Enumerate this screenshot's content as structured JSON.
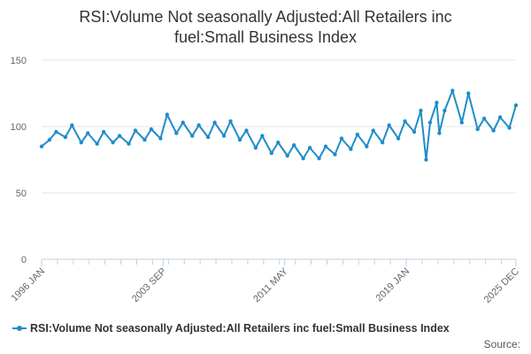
{
  "title_line1": "RSI:Volume Not seasonally Adjusted:All Retailers inc",
  "title_line2": "fuel:Small Business Index",
  "legend_label": "RSI:Volume Not seasonally Adjusted:All Retailers inc fuel:Small Business Index",
  "source_label": "Source:",
  "colors": {
    "series": "#1f8dc7",
    "grid": "#e6e6e6",
    "axis": "#c0d0e0",
    "text": "#333333",
    "tick_text": "#666666"
  },
  "chart_data": {
    "type": "line",
    "xlabel": "",
    "ylabel": "",
    "ylim": [
      0,
      150
    ],
    "yticks": [
      0,
      50,
      100,
      150
    ],
    "x_range": [
      "1996 JAN",
      "2025 DEC"
    ],
    "xtick_labels": [
      "1996 JAN",
      "2003 SEP",
      "2011 MAY",
      "2019 JAN",
      "2025 DEC"
    ],
    "grid": "horizontal",
    "legend": "bottom",
    "series": [
      {
        "name": "RSI:Volume Not seasonally Adjusted:All Retailers inc fuel:Small Business Index",
        "points": [
          [
            "1996 JAN",
            85
          ],
          [
            "1996 JUL",
            90
          ],
          [
            "1996 DEC",
            96
          ],
          [
            "1997 JUL",
            92
          ],
          [
            "1997 DEC",
            101
          ],
          [
            "1998 JUL",
            88
          ],
          [
            "1998 DEC",
            95
          ],
          [
            "1999 JUL",
            87
          ],
          [
            "1999 DEC",
            96
          ],
          [
            "2000 JUL",
            88
          ],
          [
            "2000 DEC",
            93
          ],
          [
            "2001 JUL",
            87
          ],
          [
            "2001 DEC",
            97
          ],
          [
            "2002 JUL",
            90
          ],
          [
            "2002 DEC",
            98
          ],
          [
            "2003 JUL",
            91
          ],
          [
            "2003 DEC",
            109
          ],
          [
            "2004 JUL",
            95
          ],
          [
            "2004 DEC",
            103
          ],
          [
            "2005 JUL",
            93
          ],
          [
            "2005 DEC",
            101
          ],
          [
            "2006 JUL",
            92
          ],
          [
            "2006 DEC",
            103
          ],
          [
            "2007 JUL",
            93
          ],
          [
            "2007 DEC",
            104
          ],
          [
            "2008 JUL",
            90
          ],
          [
            "2008 DEC",
            97
          ],
          [
            "2009 JUL",
            84
          ],
          [
            "2009 DEC",
            93
          ],
          [
            "2010 JUL",
            80
          ],
          [
            "2010 DEC",
            88
          ],
          [
            "2011 JUL",
            78
          ],
          [
            "2011 DEC",
            86
          ],
          [
            "2012 JUL",
            76
          ],
          [
            "2012 DEC",
            84
          ],
          [
            "2013 JUL",
            76
          ],
          [
            "2013 DEC",
            85
          ],
          [
            "2014 JUL",
            79
          ],
          [
            "2014 DEC",
            91
          ],
          [
            "2015 JUL",
            83
          ],
          [
            "2015 DEC",
            94
          ],
          [
            "2016 JUL",
            85
          ],
          [
            "2016 DEC",
            97
          ],
          [
            "2017 JUL",
            88
          ],
          [
            "2017 DEC",
            101
          ],
          [
            "2018 JUL",
            91
          ],
          [
            "2018 DEC",
            104
          ],
          [
            "2019 JUL",
            96
          ],
          [
            "2019 DEC",
            112
          ],
          [
            "2020 APR",
            75
          ],
          [
            "2020 JUL",
            103
          ],
          [
            "2020 DEC",
            118
          ],
          [
            "2021 FEB",
            95
          ],
          [
            "2021 JUN",
            112
          ],
          [
            "2021 DEC",
            127
          ],
          [
            "2022 JUL",
            103
          ],
          [
            "2022 DEC",
            125
          ],
          [
            "2023 JUL",
            98
          ],
          [
            "2023 DEC",
            106
          ],
          [
            "2024 JUL",
            97
          ],
          [
            "2024 DEC",
            107
          ],
          [
            "2025 JUL",
            99
          ],
          [
            "2025 DEC",
            116
          ]
        ]
      }
    ]
  }
}
